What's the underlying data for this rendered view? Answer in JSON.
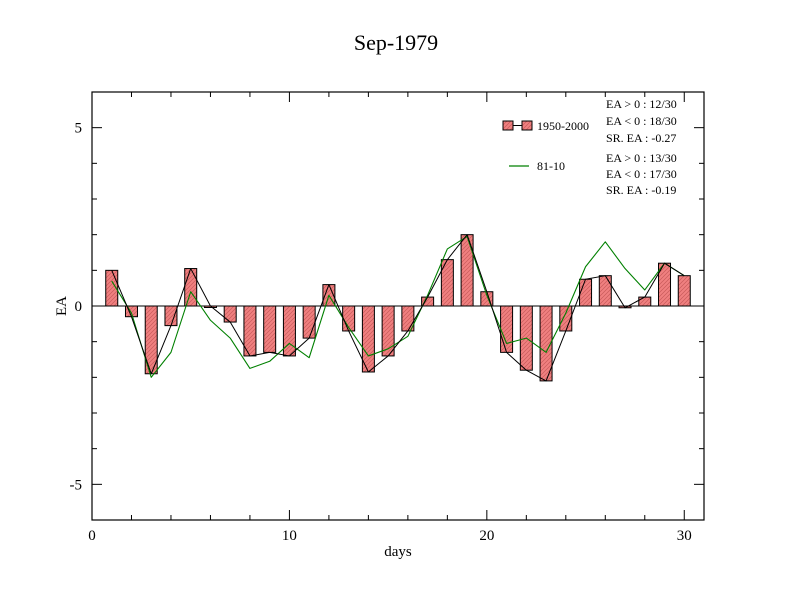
{
  "chart_data": {
    "type": "bar",
    "title": "Sep-1979",
    "xlabel": "days",
    "ylabel": "EA",
    "xlim": [
      0,
      31
    ],
    "ylim": [
      -6,
      6
    ],
    "xticks": [
      0,
      10,
      20,
      30
    ],
    "yticks": [
      -5,
      0,
      5
    ],
    "grid": false,
    "legend_position": "top-right",
    "x": [
      1,
      2,
      3,
      4,
      5,
      6,
      7,
      8,
      9,
      10,
      11,
      12,
      13,
      14,
      15,
      16,
      17,
      18,
      19,
      20,
      21,
      22,
      23,
      24,
      25,
      26,
      27,
      28,
      29,
      30
    ],
    "series": [
      {
        "name": "1950-2000",
        "type": "bar+line",
        "values": [
          1.0,
          -0.3,
          -1.9,
          -0.55,
          1.05,
          0.0,
          -0.45,
          -1.4,
          -1.3,
          -1.4,
          -0.9,
          0.6,
          -0.7,
          -1.85,
          -1.4,
          -0.7,
          0.25,
          1.3,
          2.0,
          0.4,
          -1.3,
          -1.8,
          -2.1,
          -0.7,
          0.75,
          0.85,
          -0.05,
          0.25,
          1.2,
          0.85
        ],
        "stats": [
          "EA > 0 : 12/30",
          "EA < 0 : 18/30",
          "SR. EA : -0.27"
        ]
      },
      {
        "name": "81-10",
        "type": "line",
        "values": [
          0.7,
          -0.2,
          -2.0,
          -1.3,
          0.4,
          -0.4,
          -0.9,
          -1.75,
          -1.55,
          -1.05,
          -1.45,
          0.3,
          -0.6,
          -1.4,
          -1.2,
          -0.85,
          0.3,
          1.6,
          1.95,
          0.3,
          -1.05,
          -0.9,
          -1.3,
          -0.2,
          1.1,
          1.8,
          1.05,
          0.45,
          1.2,
          0.85
        ],
        "stats": [
          "EA > 0 : 13/30",
          "EA < 0 : 17/30",
          "SR. EA : -0.19"
        ]
      }
    ],
    "colors": {
      "bar_fill": "#f08080",
      "bar_edge": "#000000",
      "line_1950_2000": "#000000",
      "line_81_10": "#008000",
      "axis": "#000000",
      "background": "#ffffff"
    }
  }
}
